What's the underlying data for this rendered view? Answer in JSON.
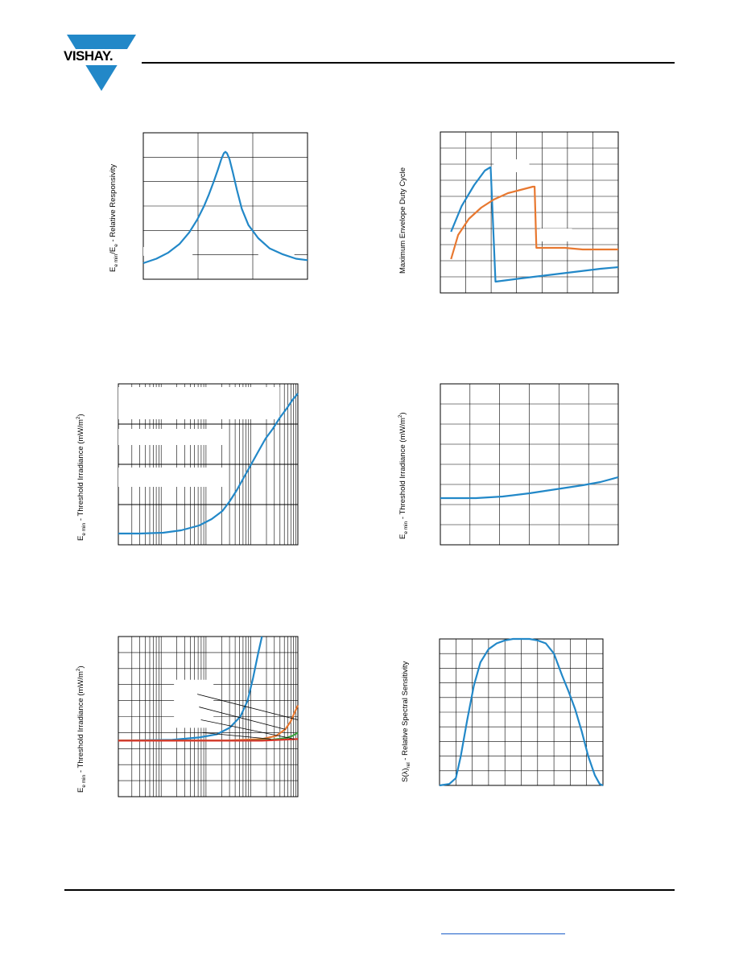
{
  "brand": {
    "name": "VISHAY."
  },
  "colors": {
    "blue": "#2288c8",
    "orange": "#e87830",
    "red": "#d8362a",
    "green": "#3aa040",
    "grid": "#000000",
    "link": "#1a5cc8"
  },
  "axis_labels": {
    "c1_y_a": "E",
    "c1_y_a_sub": "e min",
    "c1_y_b": "/E",
    "c1_y_b_sub": "e",
    "c1_y_c": " -  Relative Responsivity",
    "c2_y": "Maximum Envelope Duty Cycle",
    "c3_y_a": "E",
    "c3_y_a_sub": "e min",
    "c3_y_b": " -  Threshold Irradiance (mW/m",
    "c3_y_sup": "2",
    "c3_y_c": ")",
    "c4_y_a": "E",
    "c4_y_a_sub": "e min",
    "c4_y_b": " -  Threshold Irradiance (mW/m",
    "c4_y_sup": "2",
    "c4_y_c": ")",
    "c5_y_a": "E",
    "c5_y_a_sub": "e min",
    "c5_y_b": " - Threshold Irradiance (mW/m",
    "c5_y_sup": "2",
    "c5_y_c": ")",
    "c6_y_a": "S(λ)",
    "c6_y_a_sub": "rel",
    "c6_y_b": " - Relative Spectral Sensitivity"
  },
  "chart_data": [
    {
      "id": "relative-responsivity",
      "type": "line",
      "xlim": [
        0,
        1
      ],
      "ylim": [
        0,
        1
      ],
      "grid": true,
      "series": [
        {
          "color": "#2288c8",
          "x": [
            0,
            0.08,
            0.15,
            0.22,
            0.28,
            0.33,
            0.37,
            0.4,
            0.43,
            0.455,
            0.475,
            0.49,
            0.5,
            0.51,
            0.525,
            0.545,
            0.57,
            0.6,
            0.64,
            0.7,
            0.77,
            0.85,
            0.93,
            1
          ],
          "y": [
            0.11,
            0.14,
            0.18,
            0.24,
            0.32,
            0.41,
            0.5,
            0.58,
            0.67,
            0.75,
            0.82,
            0.86,
            0.87,
            0.86,
            0.82,
            0.73,
            0.61,
            0.48,
            0.37,
            0.28,
            0.21,
            0.17,
            0.14,
            0.13
          ]
        }
      ]
    },
    {
      "id": "max-envelope-duty-cycle",
      "type": "line",
      "xlim": [
        0,
        1
      ],
      "ylim": [
        0,
        1
      ],
      "grid": true,
      "series": [
        {
          "color": "#2288c8",
          "x": [
            0.06,
            0.12,
            0.19,
            0.25,
            0.28,
            0.283,
            0.31,
            0.45,
            0.6,
            0.75,
            0.9,
            1
          ],
          "y": [
            0.38,
            0.54,
            0.67,
            0.76,
            0.78,
            0.78,
            0.07,
            0.09,
            0.11,
            0.13,
            0.15,
            0.16
          ]
        },
        {
          "color": "#e87830",
          "x": [
            0.06,
            0.1,
            0.16,
            0.23,
            0.3,
            0.38,
            0.45,
            0.52,
            0.53,
            0.54,
            0.6,
            0.7,
            0.8,
            0.9,
            1
          ],
          "y": [
            0.21,
            0.36,
            0.46,
            0.53,
            0.58,
            0.62,
            0.64,
            0.66,
            0.66,
            0.28,
            0.28,
            0.28,
            0.27,
            0.27,
            0.27
          ]
        }
      ]
    },
    {
      "id": "threshold-irradiance-semilog",
      "type": "line",
      "xlim": [
        0,
        1
      ],
      "ylim": [
        0,
        1
      ],
      "grid": true,
      "x_scale": "log",
      "series": [
        {
          "color": "#2288c8",
          "x": [
            0,
            0.12,
            0.25,
            0.35,
            0.45,
            0.52,
            0.58,
            0.62,
            0.66,
            0.7,
            0.74,
            0.78,
            0.82,
            0.86,
            0.9,
            0.94,
            0.97,
            1
          ],
          "y": [
            0.07,
            0.07,
            0.075,
            0.09,
            0.12,
            0.16,
            0.21,
            0.27,
            0.34,
            0.42,
            0.5,
            0.58,
            0.66,
            0.72,
            0.79,
            0.85,
            0.9,
            0.94
          ]
        }
      ]
    },
    {
      "id": "threshold-irradiance-linear",
      "type": "line",
      "xlim": [
        0,
        1
      ],
      "ylim": [
        0,
        1
      ],
      "grid": true,
      "series": [
        {
          "color": "#2288c8",
          "x": [
            0,
            0.2,
            0.35,
            0.5,
            0.65,
            0.8,
            0.9,
            1
          ],
          "y": [
            0.29,
            0.29,
            0.3,
            0.32,
            0.345,
            0.37,
            0.39,
            0.42
          ]
        }
      ]
    },
    {
      "id": "threshold-irradiance-family",
      "type": "line",
      "xlim": [
        0,
        1
      ],
      "ylim": [
        0,
        1
      ],
      "grid": true,
      "x_scale": "log",
      "series": [
        {
          "color": "#2288c8",
          "x": [
            0,
            0.3,
            0.45,
            0.55,
            0.62,
            0.68,
            0.72,
            0.75,
            0.78,
            0.8
          ],
          "y": [
            0.35,
            0.355,
            0.37,
            0.39,
            0.43,
            0.5,
            0.6,
            0.74,
            0.9,
            1
          ]
        },
        {
          "color": "#e87830",
          "x": [
            0,
            0.6,
            0.8,
            0.88,
            0.93,
            0.96,
            0.98,
            1
          ],
          "y": [
            0.35,
            0.35,
            0.36,
            0.38,
            0.42,
            0.47,
            0.52,
            0.57
          ]
        },
        {
          "color": "#3aa040",
          "x": [
            0,
            0.7,
            0.85,
            0.93,
            0.97,
            1
          ],
          "y": [
            0.35,
            0.35,
            0.355,
            0.365,
            0.38,
            0.4
          ]
        },
        {
          "color": "#d8362a",
          "x": [
            0,
            0.5,
            0.8,
            1
          ],
          "y": [
            0.35,
            0.35,
            0.35,
            0.36
          ]
        }
      ]
    },
    {
      "id": "relative-spectral-sensitivity",
      "type": "line",
      "xlim": [
        0,
        1
      ],
      "ylim": [
        0,
        1
      ],
      "grid": true,
      "series": [
        {
          "color": "#2288c8",
          "x": [
            0,
            0.06,
            0.1,
            0.13,
            0.17,
            0.21,
            0.25,
            0.3,
            0.35,
            0.4,
            0.45,
            0.5,
            0.55,
            0.6,
            0.65,
            0.7,
            0.75,
            0.79,
            0.83,
            0.87,
            0.91,
            0.95,
            0.98,
            1
          ],
          "y": [
            0,
            0.01,
            0.05,
            0.2,
            0.45,
            0.68,
            0.84,
            0.93,
            0.97,
            0.99,
            1,
            1,
            1,
            0.99,
            0.97,
            0.9,
            0.75,
            0.64,
            0.52,
            0.37,
            0.2,
            0.07,
            0.01,
            0
          ]
        }
      ]
    }
  ]
}
